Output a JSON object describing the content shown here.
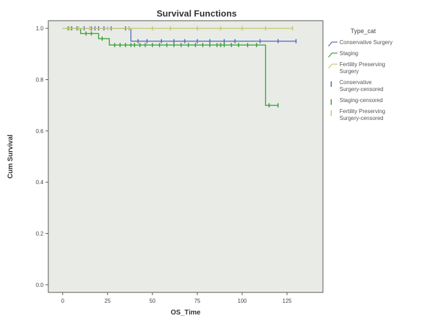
{
  "chart_data": {
    "type": "line",
    "title": "Survival Functions",
    "xlabel": "OS_Time",
    "ylabel": "Cum Survival",
    "xlim": [
      -8,
      145
    ],
    "ylim": [
      -0.03,
      1.03
    ],
    "xticks": [
      0,
      25,
      50,
      75,
      100,
      125
    ],
    "yticks": [
      0.0,
      0.2,
      0.4,
      0.6,
      0.8,
      1.0
    ],
    "ytick_labels": [
      "0.0",
      "0.2",
      "0.4",
      "0.6",
      "0.8",
      "1.0"
    ],
    "grid": false,
    "background": "#e9ebe7",
    "legend": {
      "position": "right",
      "title": "Type_cat",
      "entries": [
        {
          "label": "Conservative Surgery",
          "series": 0,
          "kind": "line"
        },
        {
          "label": "Staging",
          "series": 1,
          "kind": "line"
        },
        {
          "label": "Fertility Preserving Surgery",
          "series": 2,
          "kind": "line"
        },
        {
          "label": "Conservative Surgery-censored",
          "series": 0,
          "kind": "marker"
        },
        {
          "label": "Staging-censored",
          "series": 1,
          "kind": "marker"
        },
        {
          "label": "Fertility Preserving Surgery-censored",
          "series": 2,
          "kind": "marker"
        }
      ]
    },
    "series": [
      {
        "name": "Conservative Surgery",
        "color": "#5a6fc0",
        "steps": [
          [
            0,
            1.0
          ],
          [
            38,
            0.95
          ],
          [
            130,
            0.95
          ]
        ],
        "censored": [
          [
            5,
            1.0
          ],
          [
            8,
            1.0
          ],
          [
            12,
            1.0
          ],
          [
            16,
            1.0
          ],
          [
            18,
            1.0
          ],
          [
            20,
            1.0
          ],
          [
            23,
            1.0
          ],
          [
            27,
            1.0
          ],
          [
            35,
            1.0
          ],
          [
            37,
            1.0
          ],
          [
            42,
            0.95
          ],
          [
            47,
            0.95
          ],
          [
            55,
            0.95
          ],
          [
            62,
            0.95
          ],
          [
            68,
            0.95
          ],
          [
            75,
            0.95
          ],
          [
            82,
            0.95
          ],
          [
            90,
            0.95
          ],
          [
            96,
            0.95
          ],
          [
            110,
            0.95
          ],
          [
            120,
            0.95
          ],
          [
            130,
            0.95
          ]
        ]
      },
      {
        "name": "Staging",
        "color": "#3aa53a",
        "steps": [
          [
            0,
            1.0
          ],
          [
            10,
            0.98
          ],
          [
            20,
            0.96
          ],
          [
            26,
            0.935
          ],
          [
            113,
            0.7
          ],
          [
            120,
            0.7
          ]
        ],
        "censored": [
          [
            3,
            1.0
          ],
          [
            13,
            0.98
          ],
          [
            16,
            0.98
          ],
          [
            22,
            0.96
          ],
          [
            29,
            0.935
          ],
          [
            32,
            0.935
          ],
          [
            35,
            0.935
          ],
          [
            38,
            0.935
          ],
          [
            40,
            0.935
          ],
          [
            43,
            0.935
          ],
          [
            46,
            0.935
          ],
          [
            50,
            0.935
          ],
          [
            54,
            0.935
          ],
          [
            58,
            0.935
          ],
          [
            62,
            0.935
          ],
          [
            66,
            0.935
          ],
          [
            70,
            0.935
          ],
          [
            74,
            0.935
          ],
          [
            78,
            0.935
          ],
          [
            82,
            0.935
          ],
          [
            86,
            0.935
          ],
          [
            88,
            0.935
          ],
          [
            90,
            0.935
          ],
          [
            94,
            0.935
          ],
          [
            98,
            0.935
          ],
          [
            103,
            0.935
          ],
          [
            108,
            0.935
          ],
          [
            115,
            0.7
          ],
          [
            120,
            0.7
          ]
        ]
      },
      {
        "name": "Fertility Preserving Surgery",
        "color": "#c8c876",
        "steps": [
          [
            0,
            1.0
          ],
          [
            128,
            1.0
          ]
        ],
        "censored": [
          [
            4,
            1.0
          ],
          [
            9,
            1.0
          ],
          [
            15,
            1.0
          ],
          [
            25,
            1.0
          ],
          [
            37,
            1.0
          ],
          [
            50,
            1.0
          ],
          [
            60,
            1.0
          ],
          [
            75,
            1.0
          ],
          [
            88,
            1.0
          ],
          [
            100,
            1.0
          ],
          [
            113,
            1.0
          ],
          [
            128,
            1.0
          ]
        ]
      }
    ]
  }
}
